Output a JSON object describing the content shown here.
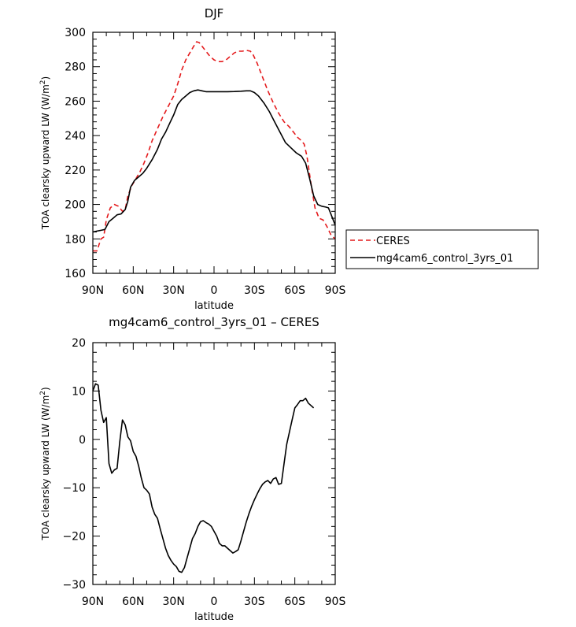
{
  "chart_data": [
    {
      "type": "line",
      "title": "DJF",
      "xlabel": "latitude",
      "ylabel": "TOA clearsky upward LW (W/m²)",
      "ylabel_main": "TOA clearsky upward LW (W/m",
      "ylabel_sup": "2",
      "ylabel_close": ")",
      "xlim": [
        90,
        -90
      ],
      "ylim": [
        160,
        300
      ],
      "xticks": [
        90,
        60,
        30,
        0,
        -30,
        -60,
        -90
      ],
      "xtick_labels": [
        "90N",
        "60N",
        "30N",
        "0",
        "30S",
        "60S",
        "90S"
      ],
      "yticks": [
        160,
        180,
        200,
        220,
        240,
        260,
        280,
        300
      ],
      "ytick_labels": [
        "160",
        "180",
        "200",
        "220",
        "240",
        "260",
        "280",
        "300"
      ],
      "legend_position": "right",
      "series": [
        {
          "name": "CERES",
          "color": "#e41a1c",
          "dash": "dashed",
          "points": [
            [
              90,
              173
            ],
            [
              87,
              173
            ],
            [
              84,
              180
            ],
            [
              82,
              181
            ],
            [
              80,
              191
            ],
            [
              77,
              198
            ],
            [
              74,
              200
            ],
            [
              71,
              199
            ],
            [
              68,
              196
            ],
            [
              66,
              197
            ],
            [
              64,
              205
            ],
            [
              61,
              211
            ],
            [
              58,
              215
            ],
            [
              55,
              219
            ],
            [
              52,
              224
            ],
            [
              49,
              230
            ],
            [
              46,
              237
            ],
            [
              42,
              244
            ],
            [
              38,
              251
            ],
            [
              34,
              257
            ],
            [
              30,
              263
            ],
            [
              27,
              270
            ],
            [
              24,
              278
            ],
            [
              21,
              284
            ],
            [
              18,
              288
            ],
            [
              15,
              292
            ],
            [
              13,
              294.5
            ],
            [
              11,
              294
            ],
            [
              9,
              292
            ],
            [
              6,
              289
            ],
            [
              3,
              286
            ],
            [
              0,
              284
            ],
            [
              -3,
              283
            ],
            [
              -6,
              283
            ],
            [
              -9,
              284
            ],
            [
              -12,
              286
            ],
            [
              -15,
              288
            ],
            [
              -18,
              289
            ],
            [
              -21,
              289
            ],
            [
              -24,
              289.5
            ],
            [
              -27,
              289
            ],
            [
              -29,
              287
            ],
            [
              -32,
              282
            ],
            [
              -36,
              274
            ],
            [
              -40,
              266
            ],
            [
              -44,
              259
            ],
            [
              -48,
              253
            ],
            [
              -52,
              248
            ],
            [
              -56,
              245
            ],
            [
              -59,
              242
            ],
            [
              -62,
              239
            ],
            [
              -65,
              237
            ],
            [
              -67,
              235
            ],
            [
              -69,
              228
            ],
            [
              -72,
              212
            ],
            [
              -75,
              198
            ],
            [
              -78,
              192
            ],
            [
              -81,
              191
            ],
            [
              -84,
              187
            ],
            [
              -87,
              182
            ],
            [
              -90,
              180
            ]
          ]
        },
        {
          "name": "mg4cam6_control_3yrs_01",
          "color": "#000000",
          "dash": "solid",
          "points": [
            [
              90,
              184
            ],
            [
              87,
              184.5
            ],
            [
              84,
              185
            ],
            [
              81,
              185.5
            ],
            [
              78,
              190
            ],
            [
              75,
              192
            ],
            [
              72,
              194
            ],
            [
              69,
              194.5
            ],
            [
              66,
              197
            ],
            [
              64,
              202
            ],
            [
              62,
              210
            ],
            [
              59,
              214
            ],
            [
              56,
              216
            ],
            [
              53,
              218
            ],
            [
              50,
              221
            ],
            [
              46,
              226
            ],
            [
              42,
              232
            ],
            [
              39,
              238
            ],
            [
              36,
              242
            ],
            [
              33,
              247
            ],
            [
              30,
              252
            ],
            [
              27,
              258
            ],
            [
              24,
              261
            ],
            [
              21,
              263
            ],
            [
              18,
              265
            ],
            [
              15,
              266
            ],
            [
              12,
              266.5
            ],
            [
              9,
              266
            ],
            [
              6,
              265.5
            ],
            [
              3,
              265.5
            ],
            [
              0,
              265.5
            ],
            [
              -5,
              265.5
            ],
            [
              -10,
              265.5
            ],
            [
              -15,
              265.6
            ],
            [
              -20,
              265.8
            ],
            [
              -24,
              266
            ],
            [
              -27,
              266
            ],
            [
              -30,
              265
            ],
            [
              -33,
              263
            ],
            [
              -37,
              259
            ],
            [
              -41,
              254
            ],
            [
              -45,
              248
            ],
            [
              -49,
              242
            ],
            [
              -53,
              236
            ],
            [
              -57,
              233
            ],
            [
              -61,
              230
            ],
            [
              -65,
              228
            ],
            [
              -68,
              224
            ],
            [
              -71,
              215
            ],
            [
              -74,
              205
            ],
            [
              -77,
              200
            ],
            [
              -80,
              199
            ],
            [
              -83,
              198.5
            ],
            [
              -85,
              198
            ],
            [
              -87,
              194
            ],
            [
              -90,
              188
            ]
          ]
        }
      ]
    },
    {
      "type": "line",
      "title": "mg4cam6_control_3yrs_01 – CERES",
      "xlabel": "latitude",
      "ylabel": "TOA clearsky upward LW (W/m²)",
      "ylabel_main": "TOA clearsky upward LW (W/m",
      "ylabel_sup": "2",
      "ylabel_close": ")",
      "xlim": [
        90,
        -90
      ],
      "ylim": [
        -30,
        20
      ],
      "xticks": [
        90,
        60,
        30,
        0,
        -30,
        -60,
        -90
      ],
      "xtick_labels": [
        "90N",
        "60N",
        "30N",
        "0",
        "30S",
        "60S",
        "90S"
      ],
      "yticks": [
        -30,
        -20,
        -10,
        0,
        10,
        20
      ],
      "ytick_labels": [
        "−30",
        "−20",
        "−10",
        "0",
        "10",
        "20"
      ],
      "series": [
        {
          "color": "#000000",
          "dash": "solid",
          "points": [
            [
              90,
              10
            ],
            [
              88,
              11.5
            ],
            [
              86,
              11.2
            ],
            [
              84,
              6
            ],
            [
              82,
              3.5
            ],
            [
              80,
              4.5
            ],
            [
              78,
              -5
            ],
            [
              76,
              -7
            ],
            [
              74,
              -6.3
            ],
            [
              72,
              -6
            ],
            [
              70,
              -0.5
            ],
            [
              68,
              4
            ],
            [
              66,
              3
            ],
            [
              64,
              0.5
            ],
            [
              62,
              -0.3
            ],
            [
              60,
              -2.5
            ],
            [
              58,
              -3.5
            ],
            [
              56,
              -5.5
            ],
            [
              54,
              -8
            ],
            [
              52,
              -10
            ],
            [
              50,
              -10.5
            ],
            [
              48,
              -11.3
            ],
            [
              46,
              -14
            ],
            [
              44,
              -15.5
            ],
            [
              42,
              -16.3
            ],
            [
              40,
              -18.5
            ],
            [
              38,
              -20.5
            ],
            [
              36,
              -22.5
            ],
            [
              34,
              -24
            ],
            [
              32,
              -25
            ],
            [
              30,
              -25.8
            ],
            [
              28,
              -26.3
            ],
            [
              26,
              -27.3
            ],
            [
              24,
              -27.5
            ],
            [
              22,
              -26.5
            ],
            [
              20,
              -24.5
            ],
            [
              18,
              -22.5
            ],
            [
              16,
              -20.5
            ],
            [
              14,
              -19.5
            ],
            [
              12,
              -18
            ],
            [
              10,
              -17
            ],
            [
              8,
              -16.8
            ],
            [
              6,
              -17.2
            ],
            [
              4,
              -17.5
            ],
            [
              2,
              -18
            ],
            [
              0,
              -19
            ],
            [
              -2,
              -20
            ],
            [
              -4,
              -21.5
            ],
            [
              -6,
              -22
            ],
            [
              -8,
              -22
            ],
            [
              -10,
              -22.5
            ],
            [
              -12,
              -23
            ],
            [
              -14,
              -23.5
            ],
            [
              -16,
              -23.2
            ],
            [
              -18,
              -22.8
            ],
            [
              -20,
              -21
            ],
            [
              -22,
              -19
            ],
            [
              -24,
              -17
            ],
            [
              -26,
              -15.3
            ],
            [
              -28,
              -13.8
            ],
            [
              -30,
              -12.5
            ],
            [
              -32,
              -11.3
            ],
            [
              -34,
              -10.2
            ],
            [
              -36,
              -9.3
            ],
            [
              -38,
              -8.8
            ],
            [
              -40,
              -8.5
            ],
            [
              -42,
              -9.1
            ],
            [
              -44,
              -8.2
            ],
            [
              -46,
              -7.9
            ],
            [
              -48,
              -9.3
            ],
            [
              -50,
              -9.1
            ],
            [
              -52,
              -5
            ],
            [
              -54,
              -1
            ],
            [
              -56,
              1.5
            ],
            [
              -58,
              4
            ],
            [
              -60,
              6.5
            ],
            [
              -62,
              7.2
            ],
            [
              -64,
              8
            ],
            [
              -66,
              8
            ],
            [
              -68,
              8.5
            ],
            [
              -70,
              7.5
            ],
            [
              -72,
              7
            ],
            [
              -74,
              6.5
            ]
          ]
        }
      ]
    }
  ]
}
